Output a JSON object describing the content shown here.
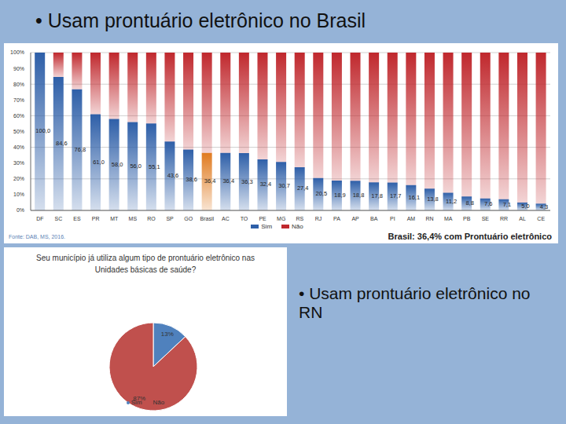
{
  "slide": {
    "title": "• Usam prontuário eletrônico no Brasil",
    "side_text": "• Usam prontuário eletrônico no RN"
  },
  "chart_data": [
    {
      "type": "bar",
      "stacked": true,
      "categories": [
        "DF",
        "SC",
        "ES",
        "PR",
        "MT",
        "MS",
        "RO",
        "SP",
        "GO",
        "Brasil",
        "AC",
        "TO",
        "PE",
        "MG",
        "RS",
        "RJ",
        "PA",
        "AP",
        "BA",
        "PI",
        "AM",
        "RN",
        "MA",
        "PB",
        "SE",
        "RR",
        "AL",
        "CE"
      ],
      "series": [
        {
          "name": "Sim",
          "color": "#2e5fa8",
          "colors": [
            "#2e5fa8",
            "#2e5fa8",
            "#2e5fa8",
            "#2e5fa8",
            "#2e5fa8",
            "#2e5fa8",
            "#2e5fa8",
            "#2e5fa8",
            "#2e5fa8",
            "#e07b20",
            "#2e5fa8",
            "#2e5fa8",
            "#2e5fa8",
            "#2e5fa8",
            "#2e5fa8",
            "#2e5fa8",
            "#2e5fa8",
            "#2e5fa8",
            "#2e5fa8",
            "#2e5fa8",
            "#2e5fa8",
            "#2e5fa8",
            "#2e5fa8",
            "#2e5fa8",
            "#2e5fa8",
            "#2e5fa8",
            "#2e5fa8",
            "#2e5fa8"
          ],
          "values": [
            100.0,
            84.6,
            76.8,
            61.0,
            58.0,
            56.0,
            55.1,
            43.6,
            38.6,
            36.4,
            36.4,
            36.3,
            32.4,
            30.7,
            27.4,
            20.5,
            18.9,
            18.8,
            17.8,
            17.7,
            16.1,
            13.8,
            11.2,
            8.8,
            7.6,
            7.1,
            5.0,
            4.3
          ],
          "value_labels": [
            "100,0",
            "84,6",
            "76,8",
            "61,0",
            "58,0",
            "56,0",
            "55,1",
            "43,6",
            "38,6",
            "36,4",
            "36,4",
            "36,3",
            "32,4",
            "30,7",
            "27,4",
            "20,5",
            "18,9",
            "18,8",
            "17,8",
            "17,7",
            "16,1",
            "13,8",
            "11,2",
            "8,8",
            "7,6",
            "7,1",
            "5,0",
            "4,3"
          ],
          "data_labels": true
        },
        {
          "name": "Não",
          "color": "#c0282d",
          "values": [
            0.0,
            15.4,
            23.2,
            39.0,
            42.0,
            44.0,
            44.9,
            56.4,
            61.4,
            63.6,
            63.6,
            63.7,
            67.6,
            69.3,
            72.6,
            79.5,
            81.1,
            81.2,
            82.2,
            82.3,
            83.9,
            86.2,
            88.8,
            91.2,
            92.4,
            92.9,
            95.0,
            95.7
          ]
        }
      ],
      "ylim": [
        0,
        100
      ],
      "yticks": [
        {
          "value": 0,
          "label": "0%"
        },
        {
          "value": 10,
          "label": "10%"
        },
        {
          "value": 20,
          "label": "20%"
        },
        {
          "value": 30,
          "label": "30%"
        },
        {
          "value": 40,
          "label": "40%"
        },
        {
          "value": 50,
          "label": "50%"
        },
        {
          "value": 60,
          "label": "60%"
        },
        {
          "value": 70,
          "label": "70%"
        },
        {
          "value": 80,
          "label": "80%"
        },
        {
          "value": 90,
          "label": "90%"
        },
        {
          "value": 100,
          "label": "100%"
        }
      ],
      "grid": true,
      "legend": "bottom",
      "source": "Fonte: DAB, MS, 2016.",
      "annotation": "Brasil: 36,4% com Prontuário eletrônico"
    },
    {
      "type": "pie",
      "title": "Seu município já utiliza algum tipo de prontuário eletrônico nas Unidades básicas de saúde?",
      "categories": [
        "Sim",
        "Não"
      ],
      "values": [
        13,
        87
      ],
      "value_labels": [
        "13%",
        "87%"
      ],
      "colors": [
        "#4f81bd",
        "#c0504d"
      ],
      "data_labels": true,
      "legend": "bottom"
    }
  ]
}
